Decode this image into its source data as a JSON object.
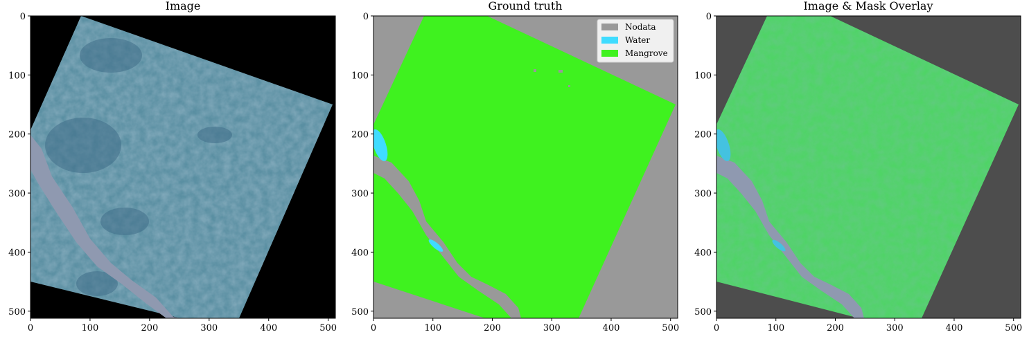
{
  "panels": [
    {
      "title": "Image"
    },
    {
      "title": "Ground truth"
    },
    {
      "title": "Image & Mask Overlay"
    }
  ],
  "axes": {
    "x_ticks": [
      "0",
      "100",
      "200",
      "300",
      "400",
      "500"
    ],
    "y_ticks": [
      "0",
      "100",
      "200",
      "300",
      "400",
      "500"
    ],
    "range": [
      0,
      512
    ]
  },
  "legend": {
    "placement": "upper-right",
    "items": [
      {
        "label": "Nodata",
        "color": "#999999"
      },
      {
        "label": "Water",
        "color": "#3fdcff"
      },
      {
        "label": "Mangrove",
        "color": "#3ff21f"
      }
    ]
  },
  "colors": {
    "image_background": "#000000",
    "forest": "#5a8fa2",
    "forest_dark": "#3f6d88",
    "river": "#8f99b0",
    "nodata": "#999999",
    "water": "#3fdcff",
    "mangrove": "#3ff21f",
    "overlay_background": "#4d4d4d",
    "overlay_mangrove": "#4fd466"
  }
}
